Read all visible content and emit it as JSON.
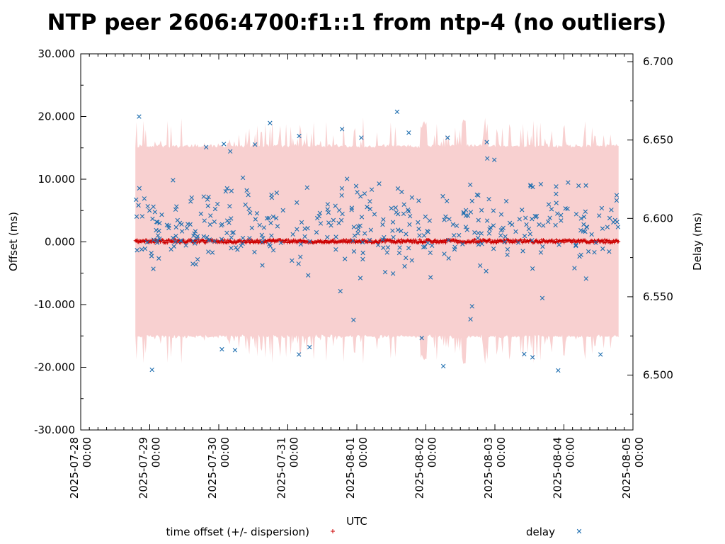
{
  "chart_data": {
    "type": "scatter",
    "title": "NTP peer 2606:4700:f1::1 from ntp-4 (no outliers)",
    "xlabel": "UTC",
    "ylabel": "Offset (ms)",
    "y2label": "Delay (ms)",
    "x_ticks": [
      [
        "2025-07-28",
        "00:00"
      ],
      [
        "2025-07-29",
        "00:00"
      ],
      [
        "2025-07-30",
        "00:00"
      ],
      [
        "2025-07-31",
        "00:00"
      ],
      [
        "2025-08-01",
        "00:00"
      ],
      [
        "2025-08-02",
        "00:00"
      ],
      [
        "2025-08-03",
        "00:00"
      ],
      [
        "2025-08-04",
        "00:00"
      ],
      [
        "2025-08-05",
        "00:00"
      ]
    ],
    "xlim": [
      "2025-07-28 00:00",
      "2025-08-05 00:00"
    ],
    "ylim": [
      -30,
      30
    ],
    "y_ticks": [
      "30.000",
      "20.000",
      "10.000",
      "0.000",
      "-10.000",
      "-20.000",
      "-30.000"
    ],
    "y2lim": [
      6.465,
      6.705
    ],
    "y2_ticks": [
      "6.700",
      "6.650",
      "6.600",
      "6.550",
      "6.500"
    ],
    "legend_placement": "bottom",
    "grid": false,
    "colors": {
      "offset": "#cc0000",
      "dispersion_band": "#f8d0d0",
      "delay": "#1f6fb0"
    },
    "series": [
      {
        "name": "time offset (+/- dispersion)",
        "marker": "plus",
        "axis": "left",
        "x_range": [
          "2025-07-28 19:00",
          "2025-08-04 19:00"
        ],
        "offset_ms_approx": 0.1,
        "dispersion_ms_typical": 15.2,
        "dispersion_ms_peak": 19.5
      },
      {
        "name": "delay",
        "marker": "x",
        "axis": "right",
        "x_range": [
          "2025-07-28 19:00",
          "2025-08-04 19:00"
        ],
        "min_ms": 6.503,
        "max_ms": 6.668,
        "typical_range_ms": [
          6.555,
          6.635
        ]
      }
    ]
  }
}
